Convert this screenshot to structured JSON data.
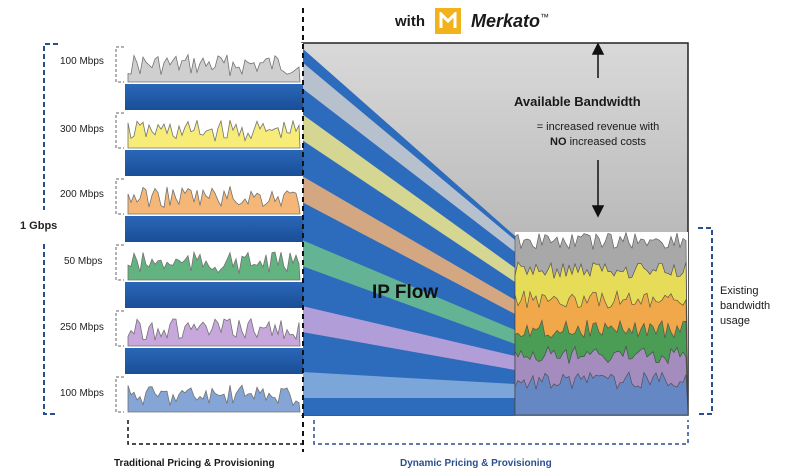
{
  "header": {
    "with_label": "with",
    "brand": "Merkato",
    "trademark": "™"
  },
  "left_panel": {
    "total_label": "1 Gbps",
    "bands": [
      {
        "label": "100 Mbps",
        "color": "#bfbfbf"
      },
      {
        "label": "300 Mbps",
        "color": "#f3e64a"
      },
      {
        "label": "200 Mbps",
        "color": "#f2a04a"
      },
      {
        "label": "50 Mbps",
        "color": "#2f9a57"
      },
      {
        "label": "250 Mbps",
        "color": "#b58ad1"
      },
      {
        "label": "100 Mbps",
        "color": "#5b88c7"
      }
    ],
    "footer": "Traditional Pricing & Provisioning"
  },
  "right_panel": {
    "flow_label": "IP Flow",
    "available_title": "Available Bandwidth",
    "available_line1": "= increased revenue with",
    "available_no": "NO",
    "available_line2": "increased costs",
    "existing_line1": "Existing",
    "existing_line2": "bandwidth",
    "existing_line3": "usage",
    "footer": "Dynamic Pricing & Provisioning"
  },
  "colors": {
    "blue_band": "#1f5aa8",
    "dashed_blue": "#2a4f8f",
    "gray_panel": "#b9b9b9",
    "logo_bg": "#f2b21b"
  }
}
